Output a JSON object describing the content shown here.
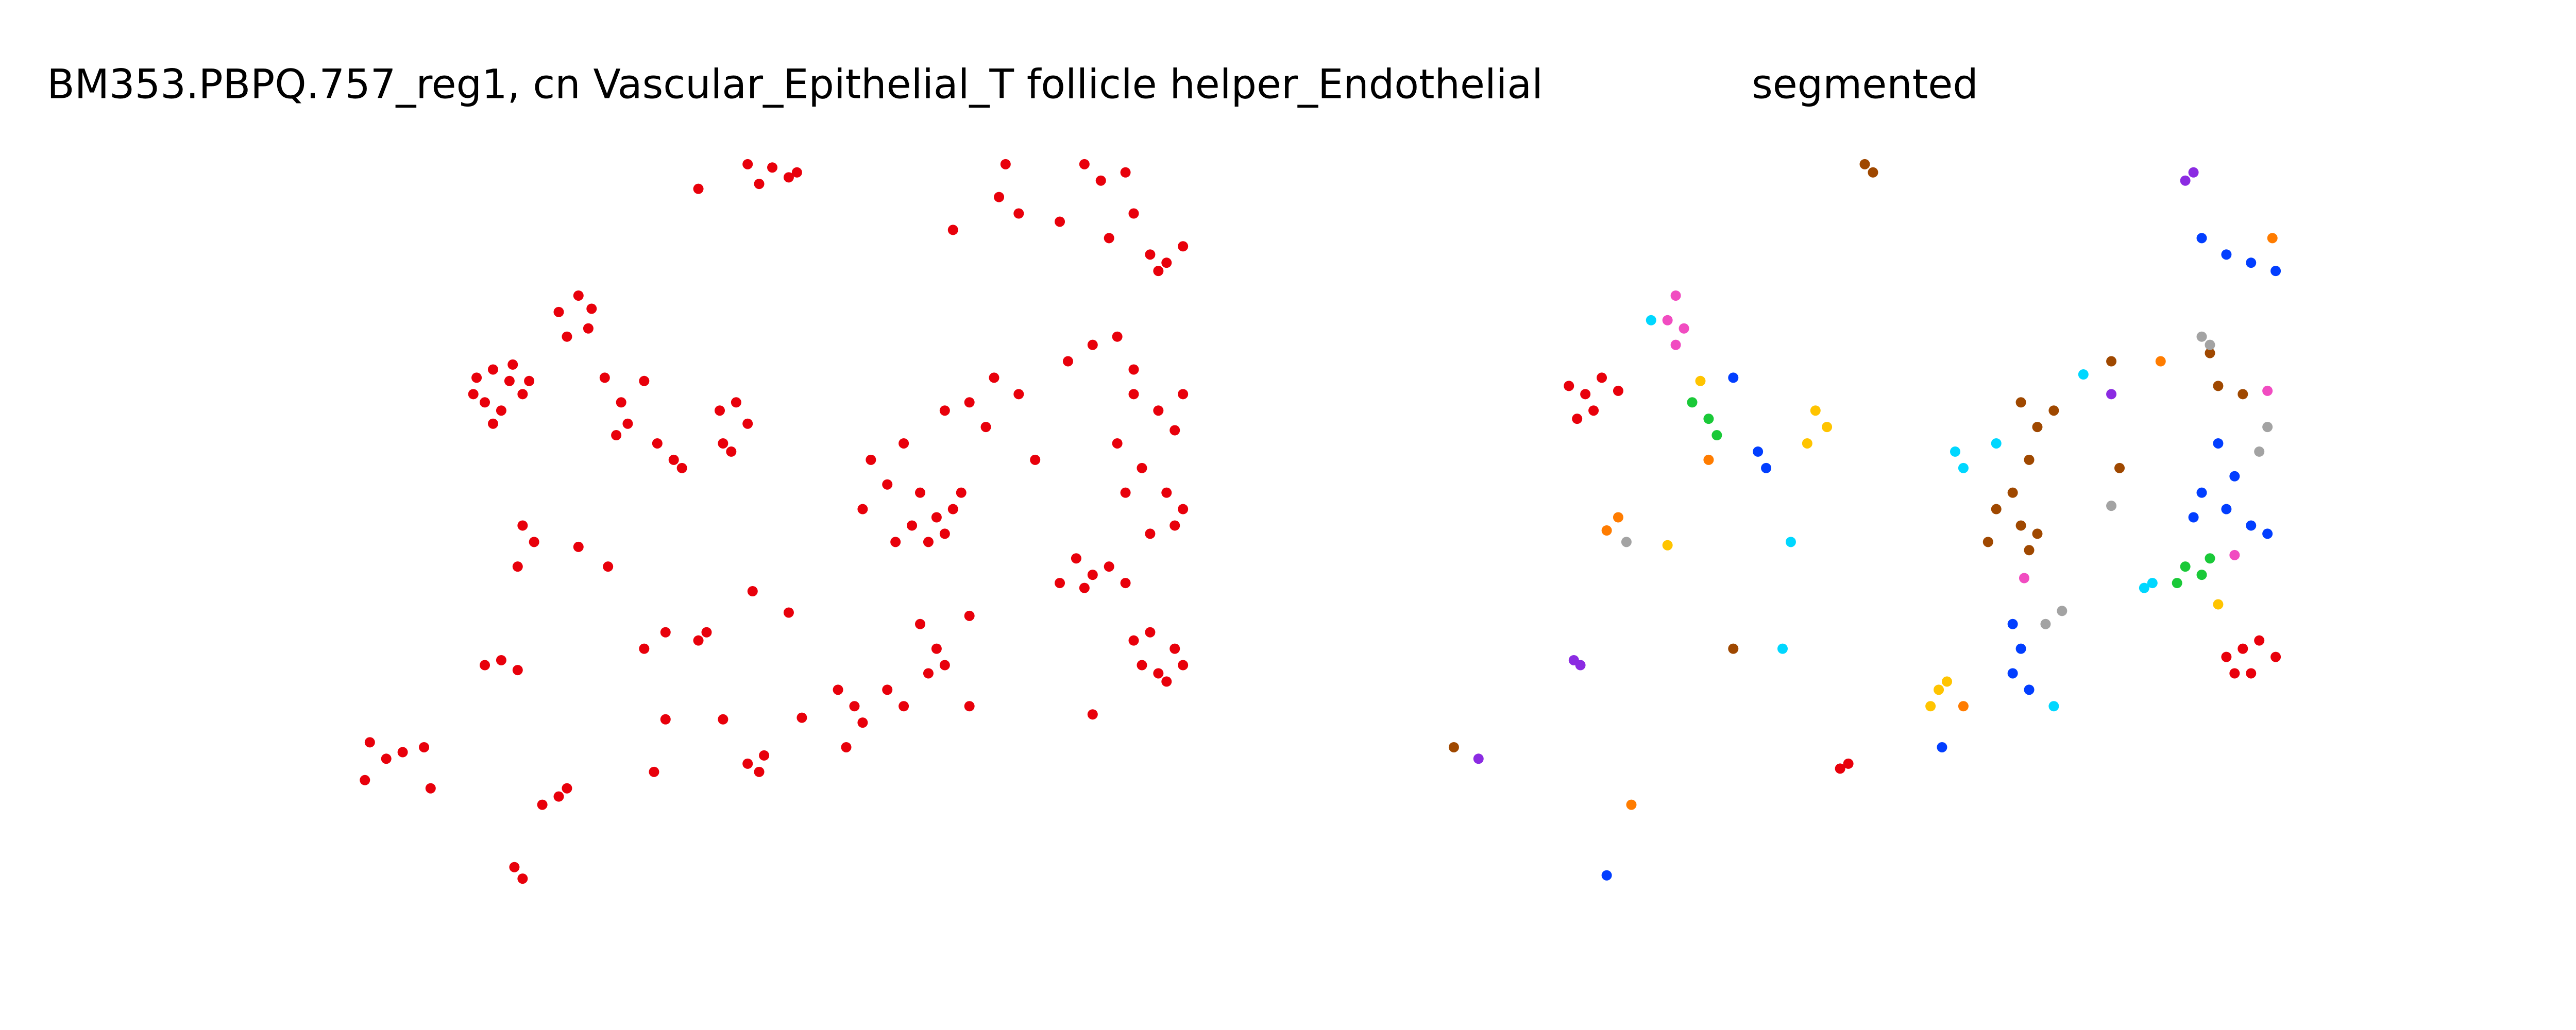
{
  "chart_data": [
    {
      "type": "scatter",
      "title": "BM353.PBPQ.757_reg1, cn Vascular_Epithelial_T follicle helper_Endothelial",
      "xlim": [
        210,
        735
      ],
      "ylim": [
        545,
        85
      ],
      "series": [
        {
          "color": "#e8000b",
          "x": [
            290,
            300,
            310,
            295,
            305,
            318,
            288,
            300,
            312,
            322,
            340,
            352,
            358,
            345,
            360,
            368,
            378,
            382,
            392,
            375,
            438,
            448,
            455,
            440,
            445,
            400,
            410,
            415,
            455,
            470,
            480,
            462,
            485,
            425,
            660,
            670,
            685,
            690,
            675,
            700,
            710,
            720,
            705,
            608,
            620,
            612,
            580,
            645,
            690,
            705,
            715,
            680,
            695,
            710,
            720,
            685,
            700,
            715,
            665,
            680,
            650,
            720,
            690,
            655,
            665,
            675,
            660,
            685,
            645,
            690,
            700,
            715,
            705,
            720,
            695,
            710,
            560,
            570,
            575,
            565,
            580,
            585,
            555,
            540,
            530,
            525,
            550,
            575,
            590,
            600,
            605,
            620,
            630,
            545,
            560,
            570,
            565,
            575,
            590,
            510,
            520,
            525,
            515,
            540,
            550,
            590,
            295,
            305,
            315,
            225,
            235,
            245,
            222,
            258,
            262,
            330,
            340,
            345,
            318,
            313,
            455,
            462,
            465,
            318,
            325,
            315,
            352,
            370,
            392,
            405,
            425,
            430,
            458,
            480,
            440,
            405,
            398,
            488,
            665
          ],
          "y": [
            230,
            225,
            232,
            245,
            250,
            240,
            240,
            258,
            222,
            232,
            190,
            180,
            200,
            205,
            188,
            230,
            245,
            258,
            232,
            265,
            250,
            245,
            258,
            270,
            275,
            270,
            280,
            285,
            100,
            102,
            108,
            112,
            105,
            115,
            100,
            110,
            105,
            130,
            145,
            155,
            160,
            150,
            165,
            120,
            130,
            100,
            140,
            135,
            240,
            250,
            262,
            270,
            285,
            300,
            310,
            300,
            325,
            320,
            210,
            205,
            220,
            240,
            225,
            340,
            350,
            345,
            358,
            355,
            355,
            390,
            385,
            395,
            410,
            405,
            405,
            415,
            300,
            315,
            325,
            330,
            310,
            300,
            320,
            295,
            280,
            310,
            270,
            250,
            245,
            260,
            230,
            240,
            280,
            330,
            380,
            395,
            410,
            405,
            375,
            420,
            430,
            440,
            455,
            420,
            430,
            430,
            405,
            402,
            408,
            452,
            462,
            458,
            475,
            455,
            480,
            490,
            485,
            480,
            535,
            528,
            465,
            470,
            460,
            320,
            330,
            345,
            333,
            345,
            395,
            385,
            390,
            385,
            360,
            373,
            438,
            438,
            470,
            437,
            435
          ]
        }
      ]
    },
    {
      "type": "scatter",
      "title": "segmented",
      "xlim": [
        875,
        1395
      ],
      "ylim": [
        545,
        85
      ],
      "series": [
        {
          "color": "#e8000b",
          "x": [
            965,
            955,
            975,
            970,
            985,
            960,
            1365,
            1355,
            1375,
            1370,
            1385,
            1360,
            1125,
            1120
          ],
          "y": [
            240,
            235,
            230,
            250,
            238,
            255,
            395,
            400,
            390,
            410,
            400,
            410,
            465,
            468
          ]
        },
        {
          "color": "#9f4800",
          "x": [
            1135,
            1140,
            1230,
            1240,
            1250,
            1235,
            1225,
            1215,
            1230,
            1240,
            1210,
            1235,
            1345,
            1350,
            1365,
            1290,
            1055,
            885,
            1285
          ],
          "y": [
            100,
            105,
            245,
            260,
            250,
            280,
            300,
            310,
            320,
            325,
            330,
            335,
            215,
            235,
            240,
            285,
            395,
            455,
            220
          ]
        },
        {
          "color": "#023eff",
          "x": [
            1340,
            1355,
            1370,
            1385,
            1055,
            1070,
            1075,
            1350,
            1360,
            1340,
            1355,
            1370,
            1380,
            1335,
            1225,
            1230,
            1225,
            1235,
            1182,
            978
          ],
          "y": [
            145,
            155,
            160,
            165,
            230,
            275,
            285,
            270,
            290,
            300,
            310,
            320,
            325,
            315,
            380,
            395,
            410,
            420,
            455,
            533
          ]
        },
        {
          "color": "#00d7ff",
          "x": [
            1005,
            1190,
            1195,
            1215,
            1268,
            1090,
            1085,
            1250,
            1305,
            1310
          ],
          "y": [
            195,
            275,
            285,
            270,
            228,
            330,
            395,
            430,
            358,
            355
          ]
        },
        {
          "color": "#f14cc1",
          "x": [
            1020,
            1015,
            1025,
            1020,
            1380,
            1360,
            1232
          ],
          "y": [
            180,
            195,
            200,
            210,
            238,
            338,
            352
          ]
        },
        {
          "color": "#ffc400",
          "x": [
            1035,
            1105,
            1112,
            1100,
            1015,
            1180,
            1175,
            1185,
            1350
          ],
          "y": [
            232,
            250,
            260,
            270,
            332,
            420,
            430,
            415,
            368
          ]
        },
        {
          "color": "#1ac938",
          "x": [
            1030,
            1040,
            1045,
            1330,
            1340,
            1345,
            1325
          ],
          "y": [
            245,
            255,
            265,
            345,
            350,
            340,
            355
          ]
        },
        {
          "color": "#ff7c00",
          "x": [
            1383,
            1315,
            1040,
            985,
            978,
            1195,
            993
          ],
          "y": [
            145,
            220,
            280,
            315,
            323,
            430,
            490
          ]
        },
        {
          "color": "#8b2be2",
          "x": [
            1335,
            1330,
            1285,
            962,
            958,
            900
          ],
          "y": [
            105,
            110,
            240,
            405,
            402,
            462
          ]
        },
        {
          "color": "#a3a3a3",
          "x": [
            1340,
            1345,
            1380,
            1375,
            990,
            1285,
            1255,
            1245
          ],
          "y": [
            205,
            210,
            260,
            275,
            330,
            308,
            372,
            380
          ]
        }
      ]
    }
  ]
}
